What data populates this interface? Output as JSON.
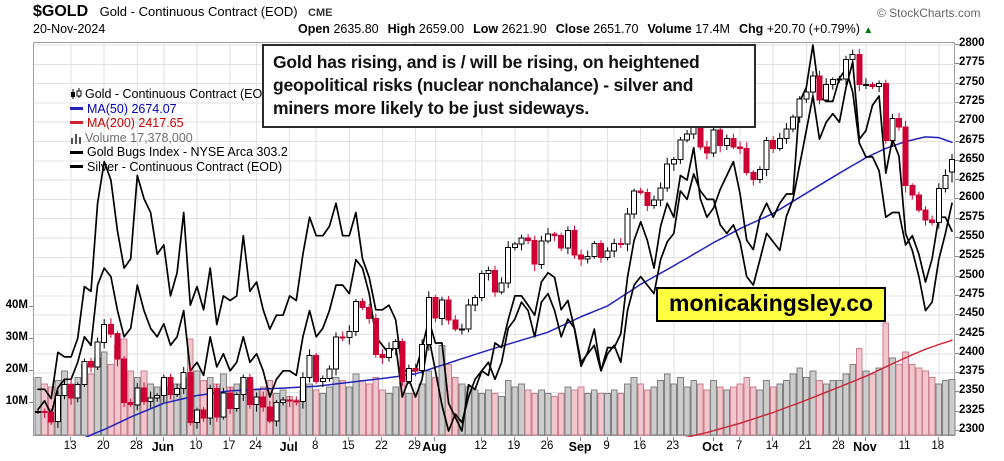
{
  "header": {
    "symbol": "$GOLD",
    "name": "Gold - Continuous Contract (EOD)",
    "exchange": "CME",
    "copyright": "© StockCharts.com",
    "date": "20-Nov-2024",
    "open_label": "Open",
    "open": "2635.80",
    "high_label": "High",
    "high": "2659.00",
    "low_label": "Low",
    "low": "2621.90",
    "close_label": "Close",
    "close": "2651.70",
    "volume_label": "Volume",
    "volume": "17.4M",
    "chg_label": "Chg",
    "chg": "+20.70 (+0.79%)",
    "chg_direction": "▲",
    "chg_color": "#007700"
  },
  "legend": {
    "gold": "Gold - Continuous Contract (EOD)",
    "ma50": "MA(50) 2674.07",
    "ma200": "MA(200) 2417.65",
    "volume": "Volume 17,378,000",
    "hui": "Gold Bugs Index - NYSE Arca 303.2",
    "silver": "Silver - Continuous Contract (EOD)"
  },
  "annotation": "Gold has rising, and is / will be rising, on heightened geopolitical risks (nuclear nonchalance) - silver and miners more likely to be just sideways.",
  "watermark": "monicakingsley.co",
  "chart_data": {
    "type": "candlestick",
    "title": "$GOLD Gold - Continuous Contract (EOD) CME",
    "price_axis": {
      "min": 2300,
      "max": 2800,
      "step": 25,
      "side": "right",
      "ticks": [
        2800,
        2775,
        2750,
        2725,
        2700,
        2675,
        2650,
        2625,
        2600,
        2575,
        2550,
        2525,
        2500,
        2475,
        2450,
        2425,
        2400,
        2375,
        2350,
        2325,
        2300
      ]
    },
    "volume_axis": {
      "unit": "M",
      "ticks": [
        40,
        30,
        20,
        10
      ],
      "labels": [
        "40M",
        "30M",
        "20M",
        "10M"
      ]
    },
    "x_ticks": [
      {
        "label": "13",
        "i": 5
      },
      {
        "label": "20",
        "i": 10
      },
      {
        "label": "28",
        "i": 15
      },
      {
        "label": "Jun",
        "i": 19,
        "month": true
      },
      {
        "label": "10",
        "i": 24
      },
      {
        "label": "17",
        "i": 29
      },
      {
        "label": "24",
        "i": 33
      },
      {
        "label": "Jul",
        "i": 38,
        "month": true
      },
      {
        "label": "8",
        "i": 42
      },
      {
        "label": "15",
        "i": 47
      },
      {
        "label": "22",
        "i": 52
      },
      {
        "label": "29",
        "i": 57
      },
      {
        "label": "Aug",
        "i": 60,
        "month": true
      },
      {
        "label": "12",
        "i": 67
      },
      {
        "label": "19",
        "i": 72
      },
      {
        "label": "26",
        "i": 77
      },
      {
        "label": "Sep",
        "i": 82,
        "month": true
      },
      {
        "label": "9",
        "i": 86
      },
      {
        "label": "16",
        "i": 91
      },
      {
        "label": "23",
        "i": 96
      },
      {
        "label": "Oct",
        "i": 102,
        "month": true
      },
      {
        "label": "7",
        "i": 106
      },
      {
        "label": "14",
        "i": 111
      },
      {
        "label": "21",
        "i": 116
      },
      {
        "label": "28",
        "i": 121
      },
      {
        "label": "Nov",
        "i": 125,
        "month": true
      },
      {
        "label": "11",
        "i": 131
      },
      {
        "label": "18",
        "i": 136
      }
    ],
    "closes": [
      2325,
      2324,
      2312,
      2346,
      2360,
      2343,
      2360,
      2390,
      2383,
      2415,
      2438,
      2426,
      2393,
      2337,
      2334,
      2356,
      2338,
      2343,
      2346,
      2369,
      2347,
      2355,
      2376,
      2311,
      2327,
      2317,
      2355,
      2318,
      2349,
      2329,
      2347,
      2369,
      2334,
      2344,
      2331,
      2313,
      2337,
      2340,
      2339,
      2338,
      2369,
      2398,
      2364,
      2368,
      2380,
      2422,
      2421,
      2429,
      2468,
      2460,
      2446,
      2399,
      2395,
      2407,
      2416,
      2364,
      2381,
      2378,
      2412,
      2473,
      2446,
      2470,
      2444,
      2432,
      2432,
      2463,
      2473,
      2504,
      2508,
      2480,
      2492,
      2538,
      2542,
      2550,
      2547,
      2516,
      2546,
      2555,
      2553,
      2537,
      2560,
      2528,
      2523,
      2526,
      2543,
      2525,
      2533,
      2543,
      2542,
      2581,
      2611,
      2609,
      2592,
      2599,
      2615,
      2646,
      2652,
      2677,
      2685,
      2695,
      2668,
      2660,
      2690,
      2670,
      2679,
      2668,
      2666,
      2635,
      2626,
      2639,
      2676,
      2666,
      2679,
      2691,
      2707,
      2730,
      2739,
      2760,
      2729,
      2749,
      2755,
      2756,
      2781,
      2788,
      2749,
      2749,
      2746,
      2750,
      2676,
      2705,
      2694,
      2618,
      2606,
      2586,
      2573,
      2570,
      2614,
      2631,
      2651.7
    ],
    "last_candle": {
      "open": 2635.8,
      "high": 2659.0,
      "low": 2621.9,
      "close": 2651.7
    },
    "volumes": [
      18,
      16,
      15,
      17,
      20,
      16,
      18,
      22,
      19,
      24,
      26,
      22,
      28,
      30,
      20,
      18,
      20,
      16,
      15,
      17,
      15,
      16,
      18,
      30,
      20,
      17,
      18,
      16,
      19,
      15,
      16,
      18,
      17,
      14,
      15,
      17,
      13,
      14,
      12,
      11,
      14,
      16,
      14,
      13,
      15,
      18,
      17,
      15,
      19,
      17,
      16,
      18,
      14,
      13,
      15,
      17,
      13,
      13,
      16,
      20,
      18,
      28,
      22,
      18,
      16,
      15,
      14,
      13,
      14,
      13,
      12,
      17,
      15,
      16,
      14,
      13,
      14,
      13,
      12,
      13,
      15,
      14,
      15,
      13,
      14,
      13,
      13,
      14,
      13,
      16,
      18,
      16,
      14,
      15,
      17,
      19,
      16,
      18,
      15,
      17,
      16,
      14,
      17,
      15,
      14,
      15,
      16,
      18,
      15,
      14,
      17,
      15,
      16,
      17,
      19,
      21,
      18,
      20,
      17,
      16,
      17,
      17,
      19,
      22,
      27,
      20,
      19,
      21,
      35,
      24,
      22,
      26,
      22,
      21,
      20,
      18,
      16,
      17,
      17.4
    ],
    "overlays": {
      "silver_equiv": [
        2354,
        2354,
        2342,
        2402,
        2396,
        2396,
        2420,
        2487,
        2481,
        2595,
        2649,
        2625,
        2559,
        2511,
        2523,
        2631,
        2601,
        2583,
        2529,
        2541,
        2475,
        2505,
        2583,
        2463,
        2487,
        2457,
        2511,
        2438,
        2475,
        2469,
        2475,
        2553,
        2481,
        2493,
        2457,
        2432,
        2450,
        2450,
        2475,
        2469,
        2529,
        2577,
        2553,
        2553,
        2565,
        2595,
        2553,
        2553,
        2583,
        2523,
        2499,
        2457,
        2457,
        2463,
        2444,
        2378,
        2378,
        2378,
        2408,
        2444,
        2414,
        2414,
        2336,
        2318,
        2300,
        2360,
        2354,
        2378,
        2372,
        2414,
        2408,
        2444,
        2475,
        2475,
        2463,
        2450,
        2493,
        2505,
        2499,
        2457,
        2469,
        2432,
        2384,
        2402,
        2432,
        2378,
        2408,
        2408,
        2426,
        2499,
        2547,
        2571,
        2547,
        2511,
        2565,
        2595,
        2577,
        2631,
        2625,
        2667,
        2601,
        2577,
        2589,
        2613,
        2631,
        2649,
        2607,
        2547,
        2535,
        2577,
        2595,
        2577,
        2595,
        2607,
        2607,
        2727,
        2745,
        2800,
        2733,
        2727,
        2727,
        2757,
        2769,
        2739,
        2673,
        2655,
        2655,
        2637,
        2577,
        2583,
        2583,
        2541,
        2553,
        2529,
        2493,
        2523,
        2577,
        2577,
        2559
      ],
      "hui_equiv": [
        2328,
        2339,
        2322,
        2356,
        2367,
        2367,
        2389,
        2422,
        2411,
        2489,
        2511,
        2500,
        2456,
        2422,
        2433,
        2489,
        2456,
        2433,
        2422,
        2439,
        2411,
        2422,
        2456,
        2378,
        2389,
        2372,
        2422,
        2383,
        2400,
        2378,
        2389,
        2422,
        2389,
        2400,
        2378,
        2344,
        2367,
        2378,
        2378,
        2372,
        2422,
        2456,
        2422,
        2433,
        2456,
        2489,
        2489,
        2478,
        2522,
        2511,
        2478,
        2422,
        2411,
        2400,
        2411,
        2344,
        2367,
        2344,
        2367,
        2422,
        2378,
        2333,
        2300,
        2322,
        2311,
        2344,
        2367,
        2378,
        2389,
        2367,
        2389,
        2433,
        2445,
        2467,
        2456,
        2422,
        2467,
        2478,
        2456,
        2422,
        2445,
        2433,
        2389,
        2400,
        2411,
        2378,
        2400,
        2411,
        2389,
        2456,
        2489,
        2500,
        2489,
        2478,
        2522,
        2545,
        2556,
        2611,
        2600,
        2633,
        2611,
        2600,
        2600,
        2567,
        2556,
        2567,
        2545,
        2500,
        2489,
        2522,
        2556,
        2545,
        2534,
        2578,
        2600,
        2645,
        2689,
        2734,
        2678,
        2700,
        2711,
        2700,
        2745,
        2778,
        2678,
        2689,
        2722,
        2734,
        2634,
        2678,
        2656,
        2556,
        2534,
        2500,
        2456,
        2467,
        2522,
        2556,
        2595
      ]
    },
    "ma50_anchors": [
      [
        0,
        2272
      ],
      [
        5,
        2284
      ],
      [
        10,
        2302
      ],
      [
        14,
        2318
      ],
      [
        19,
        2336
      ],
      [
        24,
        2346
      ],
      [
        29,
        2352
      ],
      [
        33,
        2354
      ],
      [
        38,
        2356
      ],
      [
        42,
        2358
      ],
      [
        47,
        2363
      ],
      [
        52,
        2368
      ],
      [
        57,
        2374
      ],
      [
        62,
        2388
      ],
      [
        67,
        2402
      ],
      [
        72,
        2415
      ],
      [
        77,
        2428
      ],
      [
        82,
        2448
      ],
      [
        86,
        2462
      ],
      [
        91,
        2490
      ],
      [
        96,
        2514
      ],
      [
        102,
        2544
      ],
      [
        106,
        2562
      ],
      [
        111,
        2582
      ],
      [
        116,
        2608
      ],
      [
        121,
        2634
      ],
      [
        125,
        2654
      ],
      [
        128,
        2666
      ],
      [
        131,
        2675
      ],
      [
        134,
        2681
      ],
      [
        136,
        2680
      ],
      [
        138,
        2674
      ]
    ],
    "ma200_anchors": [
      [
        96,
        2288
      ],
      [
        101,
        2298
      ],
      [
        106,
        2310
      ],
      [
        111,
        2324
      ],
      [
        116,
        2340
      ],
      [
        121,
        2357
      ],
      [
        125,
        2371
      ],
      [
        128,
        2383
      ],
      [
        131,
        2395
      ],
      [
        134,
        2406
      ],
      [
        136,
        2412
      ],
      [
        138,
        2417.65
      ]
    ],
    "colors": {
      "up_candle": "#000000",
      "down_candle": "#cc0033",
      "ma50": "#2222bb",
      "ma200": "#cc2233",
      "overlay": "#000000",
      "vol_up_fill": "#cccccc",
      "vol_up_stroke": "#808080",
      "vol_down_fill": "#f2c6cd",
      "vol_down_stroke": "#cc8090",
      "grid": "#e2e2e2",
      "frame": "#a0a0a0"
    }
  }
}
